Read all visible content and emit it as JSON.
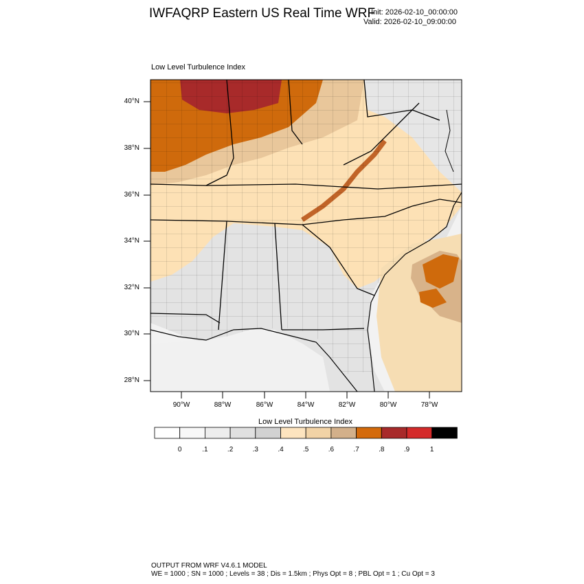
{
  "title": "IWFAQRP Eastern US Real Time WRF",
  "init": "Init: 2026-02-10_00:00:00",
  "valid": "Valid: 2026-02-10_09:00:00",
  "subtitle": "Low Level Turbulence Index",
  "map": {
    "lat_labels": [
      "40°N",
      "38°N",
      "36°N",
      "34°N",
      "32°N",
      "30°N",
      "28°N"
    ],
    "lon_labels": [
      "90°W",
      "88°W",
      "86°W",
      "84°W",
      "82°W",
      "80°W",
      "78°W"
    ],
    "colors": {
      "land_low": "#e2e2e2",
      "land_mid": "#fde2b8",
      "land_high": "#cf6a0c",
      "land_max": "#a82a2a",
      "ocean": "#f3f3f3",
      "borders": "#000000"
    }
  },
  "colorbar": {
    "title": "Low Level Turbulence Index",
    "colors": [
      "#ffffff",
      "#f8f8f8",
      "#ededed",
      "#e0e0e0",
      "#d2d2d2",
      "#fde4bf",
      "#f2d3a6",
      "#d3b08a",
      "#d46a0b",
      "#a82a2a",
      "#d42a2a",
      "#000000"
    ],
    "labels": [
      "0",
      ".1",
      ".2",
      ".3",
      ".4",
      ".5",
      ".6",
      ".7",
      ".8",
      ".9",
      "1"
    ]
  },
  "footer": {
    "line1": "OUTPUT FROM WRF V4.6.1 MODEL",
    "line2": "WE = 1000 ; SN = 1000 ; Levels = 38 ; Dis = 1.5km ; Phys Opt = 8 ; PBL Opt = 1 ; Cu Opt = 3"
  }
}
